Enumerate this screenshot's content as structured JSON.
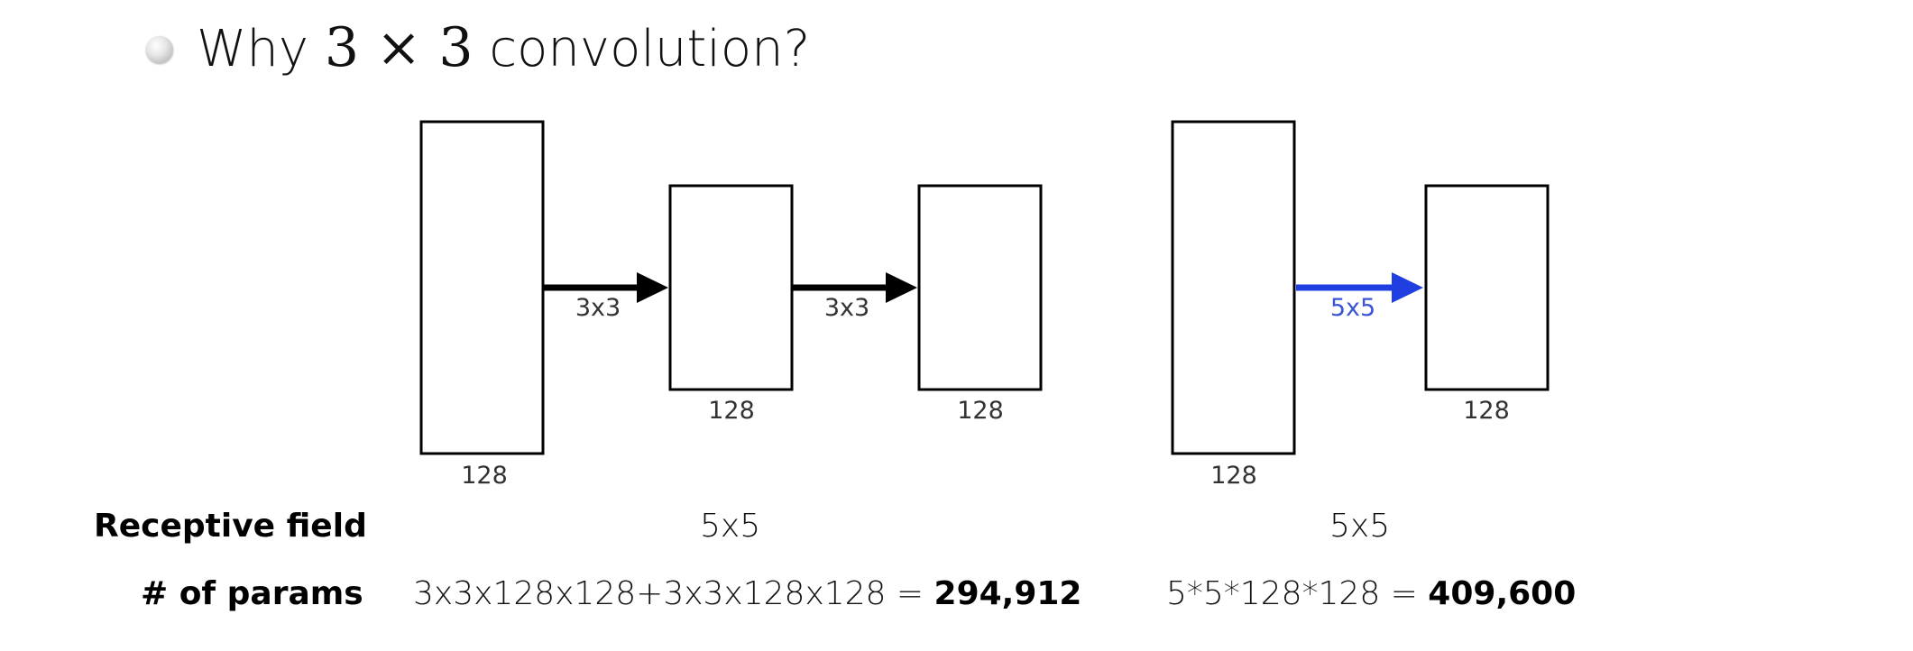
{
  "title": {
    "prefix": "Why ",
    "math": "3 × 3",
    "suffix": " convolution?"
  },
  "left_diagram": {
    "boxes": [
      "128",
      "128",
      "128"
    ],
    "arrows": [
      "3x3",
      "3x3"
    ],
    "arrow_color": "#000000"
  },
  "right_diagram": {
    "boxes": [
      "128",
      "128"
    ],
    "arrows": [
      "5x5"
    ],
    "arrow_color": "#1f3fe0",
    "arrow_label_color": "#3a55d6"
  },
  "rows": {
    "receptive_field": {
      "label": "Receptive field",
      "left": "5x5",
      "right": "5x5"
    },
    "params": {
      "label": "# of params",
      "left_expr": "3x3x128x128+3x3x128x128 = ",
      "left_total": "294,912",
      "right_expr": "5*5*128*128 = ",
      "right_total": "409,600"
    }
  }
}
